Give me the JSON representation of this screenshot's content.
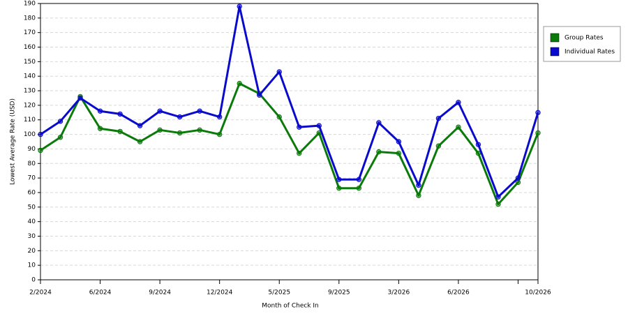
{
  "chart_data": {
    "type": "line",
    "x_label": "Month of Check In",
    "y_label": "Lowest Average Rate (USD)",
    "categories": [
      "2/2024",
      null,
      null,
      "6/2024",
      null,
      null,
      "9/2024",
      null,
      null,
      "12/2024",
      null,
      null,
      "5/2025",
      null,
      null,
      "9/2025",
      null,
      null,
      "3/2026",
      null,
      null,
      "6/2026",
      null,
      null,
      null,
      "10/2026"
    ],
    "series": [
      {
        "name": "Group Rates",
        "color": "#0a7a0a",
        "values": [
          89,
          98,
          126,
          104,
          102,
          95,
          103,
          101,
          103,
          100,
          135,
          128,
          112,
          87,
          101,
          63,
          63,
          88,
          87,
          58,
          92,
          105,
          87,
          52,
          67,
          101
        ]
      },
      {
        "name": "Individual Rates",
        "color": "#0a0acc",
        "values": [
          100,
          109,
          125,
          116,
          114,
          106,
          116,
          112,
          116,
          112,
          188,
          127,
          143,
          105,
          106,
          69,
          69,
          108,
          95,
          65,
          111,
          122,
          93,
          57,
          70,
          115
        ]
      }
    ],
    "ylim": [
      0,
      190
    ],
    "yticks": [
      0,
      10,
      20,
      30,
      40,
      50,
      60,
      70,
      80,
      90,
      100,
      110,
      120,
      130,
      140,
      150,
      160,
      170,
      180,
      190
    ],
    "grid": true,
    "legend": "right"
  }
}
